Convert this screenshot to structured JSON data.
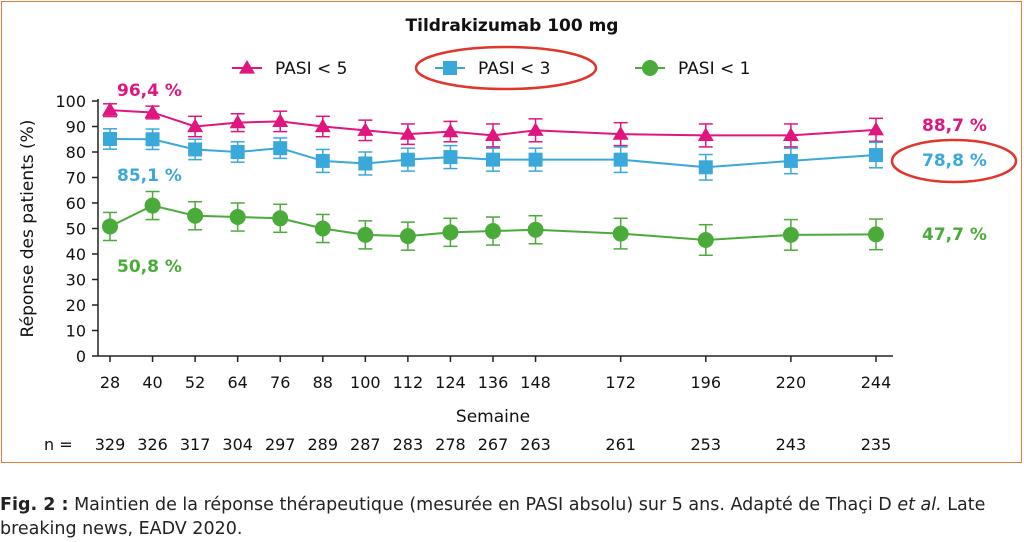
{
  "chart_data": {
    "type": "line",
    "title": "Tildrakizumab 100 mg",
    "xlabel": "Semaine",
    "ylabel": "Réponse des patients (%)",
    "ylim": [
      0,
      100
    ],
    "yticks": [
      "0",
      "10",
      "20",
      "30",
      "40",
      "50",
      "60",
      "70",
      "80",
      "90",
      "100"
    ],
    "x": [
      28,
      40,
      52,
      64,
      76,
      88,
      100,
      112,
      124,
      136,
      148,
      172,
      196,
      220,
      244
    ],
    "xtick_labels": [
      "28",
      "40",
      "52",
      "64",
      "76",
      "88",
      "100",
      "112",
      "124",
      "136",
      "148",
      "172",
      "196",
      "220",
      "244"
    ],
    "n_label": "n =",
    "n_values": [
      "329",
      "326",
      "317",
      "304",
      "297",
      "289",
      "287",
      "283",
      "278",
      "267",
      "263",
      "261",
      "253",
      "243",
      "235"
    ],
    "series": [
      {
        "name": "PASI < 5",
        "color": "#e0157f",
        "marker": "triangle",
        "values": [
          96.4,
          95.5,
          90.0,
          91.5,
          92.0,
          90.0,
          88.5,
          87.0,
          88.0,
          86.5,
          88.5,
          87.0,
          86.5,
          86.5,
          88.7
        ],
        "error": [
          2.5,
          2.5,
          4.0,
          3.5,
          4.0,
          4.0,
          4.0,
          4.0,
          4.0,
          4.5,
          4.5,
          4.5,
          4.5,
          4.5,
          4.5
        ],
        "start_label": "96,4 %",
        "end_label": "88,7 %"
      },
      {
        "name": "PASI < 3",
        "color": "#3ba8db",
        "marker": "square",
        "values": [
          85.1,
          85.0,
          81.0,
          80.0,
          81.5,
          76.5,
          75.5,
          77.0,
          78.0,
          77.0,
          77.0,
          77.0,
          74.0,
          76.5,
          78.8
        ],
        "error": [
          4.0,
          4.0,
          4.0,
          4.0,
          4.0,
          4.5,
          4.5,
          4.5,
          4.5,
          4.5,
          4.5,
          5.0,
          5.0,
          5.0,
          5.0
        ],
        "start_label": "85,1 %",
        "end_label": "78,8 %"
      },
      {
        "name": "PASI < 1",
        "color": "#4aab3a",
        "marker": "circle",
        "values": [
          50.8,
          59.0,
          55.0,
          54.5,
          54.0,
          50.0,
          47.5,
          47.0,
          48.5,
          49.0,
          49.5,
          48.0,
          45.5,
          47.5,
          47.7
        ],
        "error": [
          5.5,
          5.5,
          5.5,
          5.5,
          5.5,
          5.5,
          5.5,
          5.5,
          5.5,
          5.5,
          5.5,
          6.0,
          6.0,
          6.0,
          6.0
        ],
        "start_label": "50,8 %",
        "end_label": "47,7 %"
      }
    ],
    "legend_position": "top",
    "highlight_color": "#e0362c",
    "grid": false
  },
  "caption": {
    "label": "Fig. 2 :",
    "text_before_italic": " Maintien de la réponse thérapeutique (mesurée en PASI absolu) sur 5 ans. Adapté de Thaçi D ",
    "italic": "et al.",
    "text_after_italic": " Late breaking news, EADV 2020."
  },
  "colors": {
    "frame": "#e8793a",
    "axis": "#222222",
    "text": "#222222"
  }
}
